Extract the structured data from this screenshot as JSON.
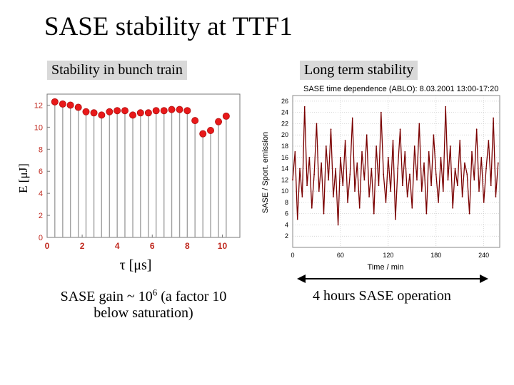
{
  "slide": {
    "title": "SASE stability at TTF1",
    "left_box": "Stability in bunch train",
    "right_box": "Long term stability",
    "left_caption_pre": "SASE gain ~ 10",
    "left_caption_exp": "6",
    "left_caption_post": " (a factor 10",
    "left_caption_line2": "below saturation)",
    "right_caption": "4 hours SASE operation"
  },
  "colors": {
    "marker": "#e8191a",
    "stem": "#a0a0a0",
    "axis_text": "#c0281e",
    "trace": "#7a0000",
    "grid": "#c8c8c8"
  },
  "chart_data": [
    {
      "type": "scatter",
      "title": "",
      "xlabel": "τ [μs]",
      "ylabel": "E [μJ]",
      "xlim": [
        0,
        11
      ],
      "ylim": [
        0,
        13
      ],
      "x_ticks": [
        "0",
        "2",
        "4",
        "6",
        "8",
        "10"
      ],
      "y_ticks": [
        "0",
        "2",
        "4",
        "6",
        "8",
        "10",
        "12"
      ],
      "grid": false,
      "x": [
        0.44,
        0.89,
        1.33,
        1.78,
        2.22,
        2.67,
        3.11,
        3.56,
        4.0,
        4.44,
        4.89,
        5.33,
        5.78,
        6.22,
        6.67,
        7.11,
        7.56,
        8.0,
        8.44,
        8.89,
        9.33,
        9.78,
        10.22
      ],
      "values": [
        12.3,
        12.1,
        12.0,
        11.8,
        11.4,
        11.3,
        11.1,
        11.4,
        11.5,
        11.5,
        11.1,
        11.3,
        11.3,
        11.5,
        11.5,
        11.6,
        11.6,
        11.5,
        10.6,
        9.4,
        9.7,
        10.5,
        11.0
      ]
    },
    {
      "type": "line",
      "title": "SASE time dependence (ABLO): 8.03.2001  13:00-17:20",
      "xlabel": "Time / min",
      "ylabel": "SASE / Sport. emission",
      "xlim": [
        0,
        260
      ],
      "ylim": [
        0,
        27
      ],
      "x_ticks": [
        "0",
        "60",
        "120",
        "180",
        "240"
      ],
      "y_ticks": [
        "2",
        "4",
        "6",
        "8",
        "10",
        "12",
        "14",
        "16",
        "18",
        "20",
        "22",
        "24",
        "26"
      ],
      "grid": true,
      "series": [
        {
          "x": [
            0,
            3,
            6,
            9,
            12,
            15,
            18,
            21,
            24,
            27,
            30,
            33,
            36,
            39,
            42,
            45,
            48,
            51,
            54,
            57,
            60,
            63,
            66,
            69,
            72,
            75,
            78,
            81,
            84,
            87,
            90,
            93,
            96,
            99,
            102,
            105,
            108,
            111,
            114,
            117,
            120,
            123,
            126,
            129,
            132,
            135,
            138,
            141,
            144,
            147,
            150,
            153,
            156,
            159,
            162,
            165,
            168,
            171,
            174,
            177,
            180,
            183,
            186,
            189,
            192,
            195,
            198,
            201,
            204,
            207,
            210,
            213,
            216,
            219,
            222,
            225,
            228,
            231,
            234,
            237,
            240,
            243,
            246,
            249,
            252,
            255,
            258
          ],
          "values": [
            12,
            17,
            5,
            14,
            9,
            25,
            11,
            16,
            7,
            13,
            22,
            10,
            15,
            6,
            18,
            12,
            21,
            9,
            14,
            4,
            16,
            11,
            19,
            8,
            13,
            23,
            10,
            15,
            7,
            17,
            12,
            20,
            9,
            14,
            6,
            18,
            11,
            24,
            13,
            8,
            16,
            10,
            19,
            5,
            14,
            21,
            11,
            17,
            9,
            13,
            7,
            18,
            12,
            22,
            10,
            15,
            6,
            17,
            11,
            20,
            13,
            8,
            16,
            10,
            25,
            12,
            18,
            7,
            14,
            11,
            19,
            9,
            15,
            13,
            6,
            17,
            12,
            21,
            10,
            16,
            8,
            14,
            19,
            11,
            23,
            9,
            15
          ]
        }
      ]
    }
  ]
}
